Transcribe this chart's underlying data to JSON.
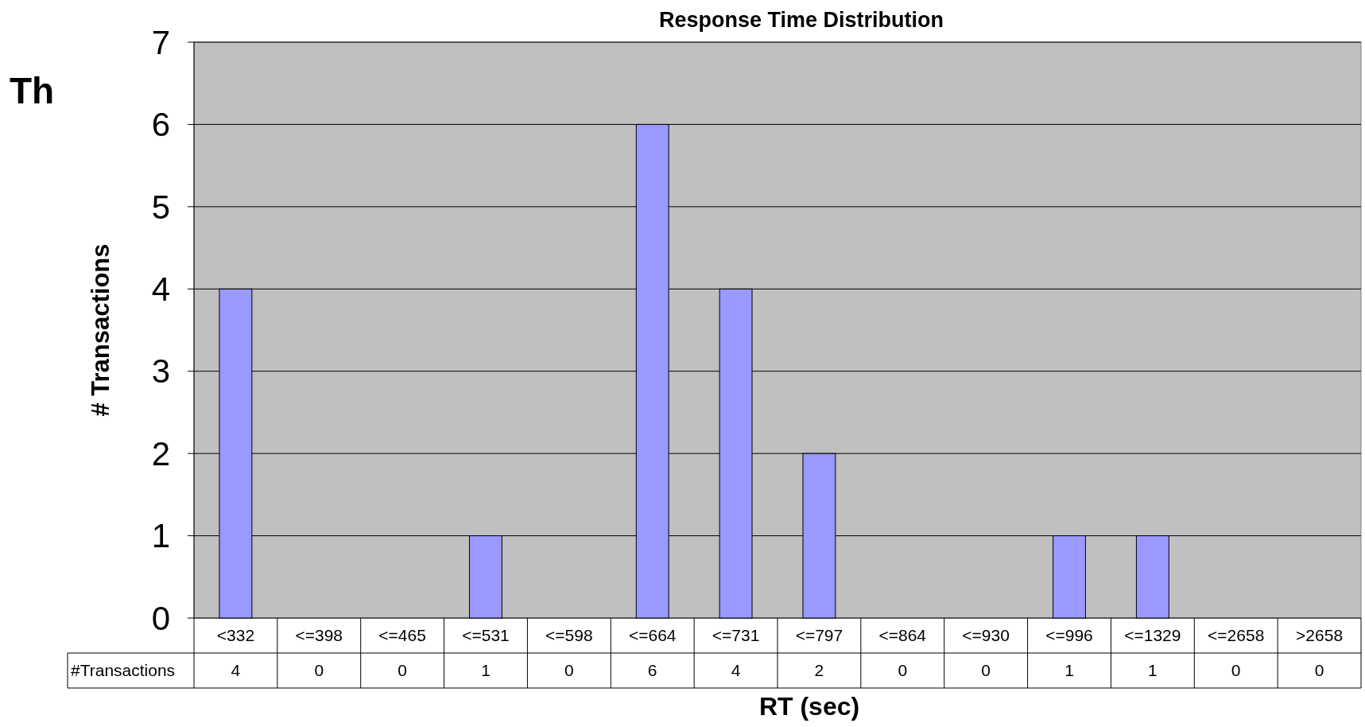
{
  "chart_data": {
    "type": "bar",
    "title": "Response Time Distribution",
    "xlabel": "RT (sec)",
    "ylabel": "# Transactions",
    "categories": [
      "<332",
      "<=398",
      "<=465",
      "<=531",
      "<=598",
      "<=664",
      "<=731",
      "<=797",
      "<=864",
      "<=930",
      "<=996",
      "<=1329",
      "<=2658",
      ">2658"
    ],
    "series": [
      {
        "name": "#Transactions",
        "color": "#9999ff",
        "values": [
          4,
          0,
          0,
          1,
          0,
          6,
          4,
          2,
          0,
          0,
          1,
          1,
          0,
          0
        ]
      }
    ],
    "ylim": [
      0,
      7
    ],
    "yticks": [
      0,
      1,
      2,
      3,
      4,
      5,
      6,
      7
    ],
    "grid": "y",
    "data_labels": true,
    "legend": "bottom left",
    "annotations": [
      "Th"
    ]
  }
}
